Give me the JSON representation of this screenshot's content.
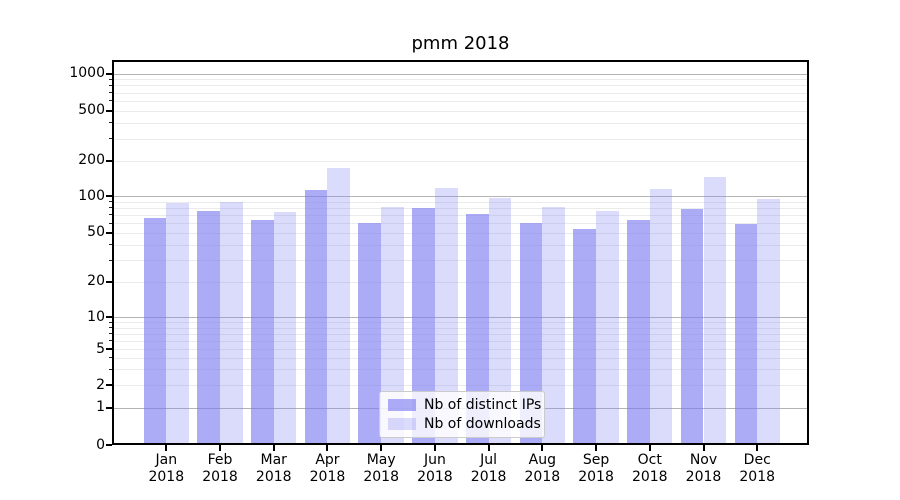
{
  "title": "pmm 2018",
  "chart_data": {
    "type": "bar",
    "title": "pmm 2018",
    "categories": [
      "Jan 2018",
      "Feb 2018",
      "Mar 2018",
      "Apr 2018",
      "May 2018",
      "Jun 2018",
      "Jul 2018",
      "Aug 2018",
      "Sep 2018",
      "Oct 2018",
      "Nov 2018",
      "Dec 2018"
    ],
    "category_months": [
      "Jan",
      "Feb",
      "Mar",
      "Apr",
      "May",
      "Jun",
      "Jul",
      "Aug",
      "Sep",
      "Oct",
      "Nov",
      "Dec"
    ],
    "category_year": "2018",
    "series": [
      {
        "name": "Nb of distinct IPs",
        "color": "rgba(124,124,240,0.63)",
        "values": [
          66,
          75,
          64,
          113,
          60,
          80,
          71,
          60,
          54,
          64,
          78,
          59
        ]
      },
      {
        "name": "Nb of downloads",
        "color": "rgba(124,124,240,0.28)",
        "values": [
          87,
          89,
          74,
          173,
          82,
          118,
          96,
          81,
          76,
          115,
          146,
          94
        ]
      }
    ],
    "yscale": "symlog",
    "y_tick_labels": [
      0,
      1,
      2,
      5,
      10,
      20,
      50,
      100,
      200,
      500,
      1000
    ],
    "ylim": [
      0,
      1400
    ],
    "grid": true,
    "legend_position": "lower center",
    "colors": {
      "bar_base": "#7c7cf0",
      "grid_major": "#b4b4b4",
      "grid_minor": "#ebebeb",
      "axis": "#000000"
    }
  }
}
